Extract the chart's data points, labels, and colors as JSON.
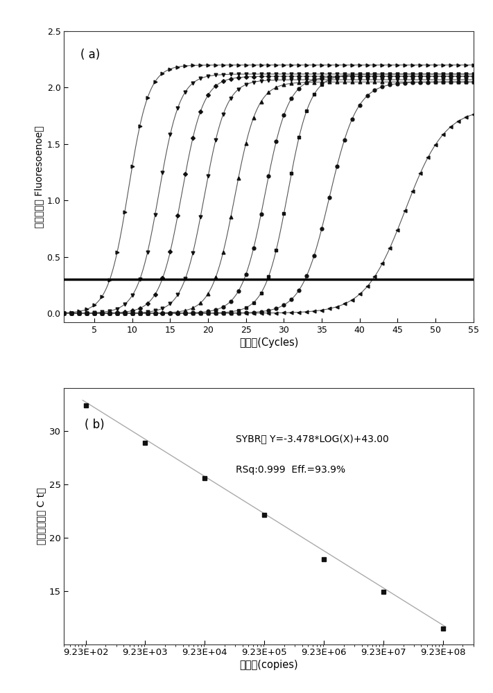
{
  "panel_a": {
    "title": "( a)",
    "xlabel": "循环数(Cycles)",
    "ylabel": "莹光信号（ Fluoresoenoe）",
    "xlim": [
      1,
      55
    ],
    "ylim": [
      -0.08,
      2.5
    ],
    "xticks": [
      5,
      10,
      15,
      20,
      25,
      30,
      35,
      40,
      45,
      50,
      55
    ],
    "yticks": [
      0.0,
      0.5,
      1.0,
      1.5,
      2.0,
      2.5
    ],
    "threshold": 0.3,
    "curves": [
      {
        "midpoint": 9.5,
        "L": 2.2,
        "k": 0.75,
        "marker": ">",
        "ms": 3.5,
        "markevery": 2
      },
      {
        "midpoint": 13.5,
        "L": 2.12,
        "k": 0.72,
        "marker": "v",
        "ms": 3.5,
        "markevery": 2
      },
      {
        "midpoint": 16.5,
        "L": 2.1,
        "k": 0.7,
        "marker": "D",
        "ms": 3.0,
        "markevery": 2
      },
      {
        "midpoint": 19.5,
        "L": 2.07,
        "k": 0.7,
        "marker": "v",
        "ms": 3.5,
        "markevery": 2
      },
      {
        "midpoint": 23.5,
        "L": 2.05,
        "k": 0.68,
        "marker": "^",
        "ms": 3.5,
        "markevery": 2
      },
      {
        "midpoint": 27.5,
        "L": 2.1,
        "k": 0.65,
        "marker": "o",
        "ms": 3.5,
        "markevery": 2
      },
      {
        "midpoint": 30.5,
        "L": 2.12,
        "k": 0.68,
        "marker": "s",
        "ms": 3.0,
        "markevery": 2
      },
      {
        "midpoint": 36.0,
        "L": 2.05,
        "k": 0.55,
        "marker": "o",
        "ms": 3.5,
        "markevery": 2
      },
      {
        "midpoint": 46.0,
        "L": 1.82,
        "k": 0.38,
        "marker": "<",
        "ms": 3.5,
        "markevery": 2
      }
    ]
  },
  "panel_b": {
    "title": "( b)",
    "xlabel": "拷贝数(copies)",
    "ylabel": "阈値循环数（ C t）",
    "annotation_line1": "SYBR， Y=-3.478*LOG(X)+43.00",
    "annotation_line2": "RSq:0.999  Eff.=93.9%",
    "x_values": [
      923,
      9230,
      92300,
      923000,
      9230000,
      92300000,
      923000000
    ],
    "y_values": [
      32.4,
      28.9,
      25.6,
      22.1,
      18.0,
      14.9,
      11.5
    ],
    "slope": -3.478,
    "intercept": 43.0,
    "xtick_labels": [
      "9.23E+02",
      "9.23E+03",
      "9.23E+04",
      "9.23E+05",
      "9.23E+06",
      "9.23E+07",
      "9.23E+08"
    ],
    "yticks": [
      15,
      20,
      25,
      30
    ],
    "ylim": [
      10,
      34
    ],
    "line_color": "#aaaaaa",
    "marker": "s",
    "ms": 5
  },
  "bg_color": "#ffffff"
}
